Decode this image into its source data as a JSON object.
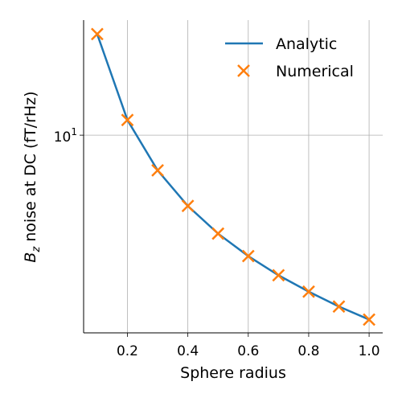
{
  "chart_data": {
    "type": "line",
    "xlabel": "Sphere radius",
    "ylabel": {
      "main": "B",
      "sub": "z",
      "rest": " noise at DC (fT/rHz)"
    },
    "x": [
      0.1,
      0.2,
      0.3,
      0.4,
      0.5,
      0.6,
      0.7,
      0.8,
      0.9,
      1.0
    ],
    "series": [
      {
        "name": "Analytic",
        "color": "#1f77b4",
        "style": "line",
        "values": [
          22.6,
          11.3,
          7.53,
          5.65,
          4.52,
          3.77,
          3.23,
          2.83,
          2.51,
          2.26
        ]
      },
      {
        "name": "Numerical",
        "color": "#ff7f0e",
        "style": "x-marker",
        "values": [
          22.6,
          11.3,
          7.53,
          5.65,
          4.52,
          3.77,
          3.23,
          2.83,
          2.51,
          2.26
        ]
      }
    ],
    "xlim": [
      0.055,
      1.045
    ],
    "xticks": [
      0.2,
      0.4,
      0.6,
      0.8,
      {
        "value": 1,
        "label": "1.0"
      }
    ],
    "ylim": [
      2.03,
      25.3
    ],
    "yticks": [
      {
        "value": 10,
        "label": {
          "base": "10",
          "exp": "1"
        }
      }
    ],
    "yscale": "log",
    "grid": true,
    "legend": "upper right"
  }
}
